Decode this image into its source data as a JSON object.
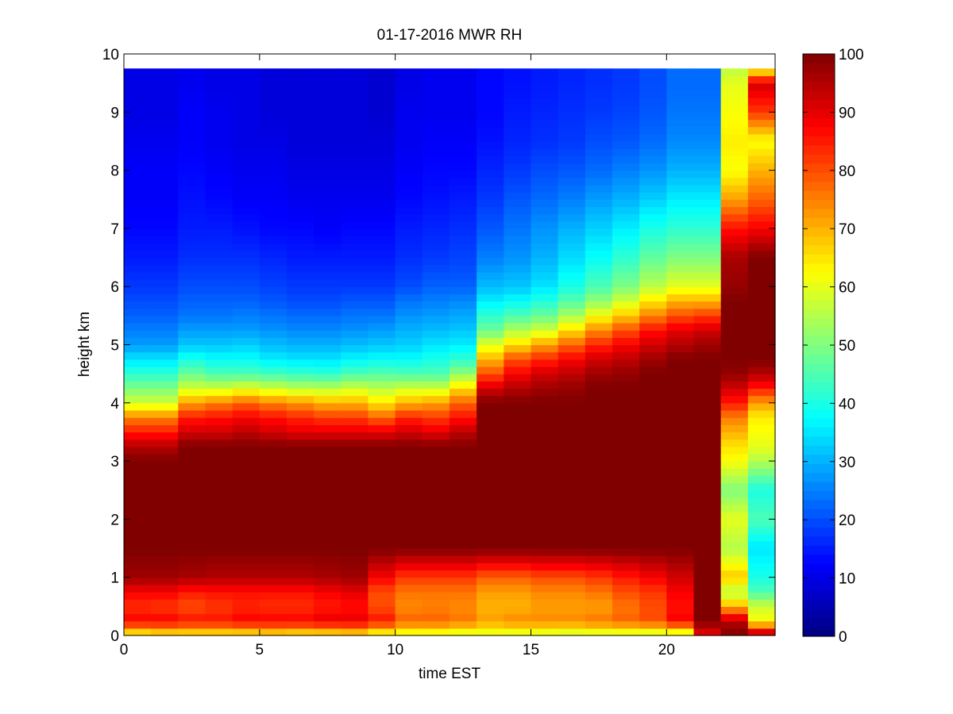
{
  "chart_data": {
    "type": "heatmap",
    "title": "01-17-2016 MWR RH",
    "xlabel": "time EST",
    "ylabel": "height km",
    "xlim": [
      0,
      24
    ],
    "ylim": [
      0,
      10
    ],
    "xticks": [
      0,
      5,
      10,
      15,
      20
    ],
    "yticks": [
      0,
      1,
      2,
      3,
      4,
      5,
      6,
      7,
      8,
      9,
      10
    ],
    "colorbar": {
      "range": [
        0,
        100
      ],
      "ticks": [
        0,
        10,
        20,
        30,
        40,
        50,
        60,
        70,
        80,
        90,
        100
      ],
      "colormap": "jet"
    },
    "grid": false,
    "time_bins": [
      0,
      1,
      2,
      3,
      4,
      5,
      6,
      7,
      8,
      9,
      10,
      11,
      12,
      13,
      14,
      15,
      16,
      17,
      18,
      19,
      20,
      21,
      22,
      23
    ],
    "height_levels_km": [
      0,
      0.25,
      0.5,
      0.75,
      1,
      1.5,
      2,
      2.5,
      3,
      3.25,
      3.5,
      3.75,
      4,
      4.25,
      4.5,
      4.75,
      5,
      5.25,
      5.5,
      5.75,
      6,
      6.5,
      7,
      7.5,
      8,
      8.5,
      9,
      9.5,
      9.75
    ],
    "max_height_km": 9.75,
    "rh_profiles": [
      [
        60,
        88,
        83,
        88,
        97,
        100,
        100,
        100,
        100,
        95,
        85,
        75,
        58,
        50,
        42,
        35,
        28,
        25,
        22,
        20,
        18,
        15,
        13,
        12,
        12,
        11,
        10,
        10,
        10
      ],
      [
        62,
        88,
        82,
        88,
        97,
        100,
        100,
        100,
        100,
        95,
        85,
        75,
        58,
        50,
        42,
        35,
        28,
        25,
        22,
        20,
        18,
        15,
        13,
        12,
        12,
        11,
        10,
        10,
        10
      ],
      [
        62,
        86,
        80,
        85,
        96,
        100,
        100,
        100,
        100,
        100,
        92,
        85,
        72,
        58,
        48,
        40,
        32,
        28,
        24,
        22,
        20,
        17,
        15,
        14,
        13,
        12,
        12,
        11,
        11
      ],
      [
        62,
        86,
        82,
        86,
        95,
        100,
        100,
        100,
        100,
        100,
        92,
        86,
        75,
        58,
        45,
        38,
        32,
        28,
        24,
        22,
        20,
        17,
        15,
        13,
        12,
        11,
        11,
        10,
        10
      ],
      [
        62,
        88,
        84,
        86,
        95,
        100,
        100,
        100,
        100,
        100,
        94,
        88,
        78,
        60,
        45,
        38,
        33,
        28,
        25,
        22,
        20,
        17,
        14,
        12,
        11,
        10,
        10,
        10,
        10
      ],
      [
        63,
        88,
        83,
        86,
        95,
        100,
        100,
        100,
        100,
        100,
        92,
        86,
        75,
        58,
        44,
        36,
        31,
        27,
        24,
        21,
        19,
        16,
        13,
        12,
        11,
        10,
        9,
        9,
        9
      ],
      [
        62,
        88,
        83,
        86,
        95,
        100,
        100,
        100,
        100,
        100,
        90,
        84,
        73,
        56,
        43,
        35,
        30,
        26,
        23,
        20,
        18,
        15,
        13,
        11,
        10,
        9,
        9,
        9,
        9
      ],
      [
        62,
        90,
        85,
        88,
        96,
        100,
        100,
        100,
        100,
        100,
        90,
        82,
        70,
        56,
        42,
        35,
        30,
        26,
        23,
        20,
        18,
        15,
        12,
        11,
        10,
        9,
        9,
        9,
        9
      ],
      [
        63,
        90,
        86,
        90,
        97,
        100,
        100,
        100,
        100,
        100,
        90,
        82,
        70,
        58,
        45,
        37,
        31,
        27,
        24,
        21,
        18,
        15,
        13,
        11,
        10,
        9,
        9,
        9,
        9
      ],
      [
        58,
        86,
        80,
        80,
        88,
        100,
        100,
        100,
        100,
        100,
        90,
        78,
        65,
        56,
        46,
        38,
        32,
        28,
        24,
        21,
        18,
        15,
        13,
        11,
        10,
        9,
        8,
        8,
        8
      ],
      [
        58,
        78,
        74,
        76,
        82,
        100,
        100,
        100,
        100,
        100,
        92,
        84,
        70,
        58,
        45,
        38,
        33,
        30,
        27,
        24,
        20,
        17,
        15,
        13,
        12,
        11,
        11,
        10,
        10
      ],
      [
        58,
        78,
        75,
        76,
        82,
        100,
        100,
        100,
        100,
        100,
        90,
        82,
        72,
        58,
        45,
        40,
        35,
        31,
        28,
        25,
        22,
        18,
        16,
        14,
        13,
        12,
        11,
        11,
        11
      ],
      [
        57,
        76,
        74,
        76,
        82,
        100,
        100,
        100,
        100,
        100,
        94,
        86,
        78,
        66,
        52,
        42,
        36,
        32,
        29,
        26,
        22,
        19,
        17,
        15,
        13,
        12,
        11,
        11,
        11
      ],
      [
        58,
        72,
        70,
        72,
        78,
        100,
        100,
        100,
        100,
        100,
        100,
        100,
        100,
        92,
        80,
        70,
        60,
        48,
        42,
        36,
        31,
        25,
        21,
        18,
        16,
        14,
        13,
        13,
        13
      ],
      [
        57,
        74,
        70,
        72,
        78,
        100,
        100,
        100,
        100,
        100,
        100,
        100,
        100,
        95,
        88,
        80,
        66,
        55,
        45,
        38,
        32,
        27,
        24,
        21,
        18,
        16,
        15,
        14,
        14
      ],
      [
        57,
        74,
        72,
        74,
        80,
        100,
        100,
        100,
        100,
        100,
        100,
        100,
        100,
        97,
        92,
        84,
        72,
        58,
        48,
        41,
        35,
        30,
        27,
        23,
        20,
        17,
        16,
        15,
        15
      ],
      [
        56,
        74,
        72,
        74,
        80,
        100,
        100,
        100,
        100,
        100,
        100,
        100,
        100,
        98,
        94,
        88,
        78,
        66,
        54,
        46,
        40,
        34,
        30,
        25,
        21,
        18,
        17,
        16,
        16
      ],
      [
        56,
        76,
        72,
        76,
        82,
        100,
        100,
        100,
        100,
        100,
        100,
        100,
        100,
        100,
        97,
        92,
        84,
        74,
        62,
        52,
        45,
        38,
        33,
        28,
        23,
        20,
        18,
        17,
        17
      ],
      [
        56,
        78,
        76,
        80,
        85,
        100,
        100,
        100,
        100,
        100,
        100,
        100,
        100,
        100,
        98,
        94,
        88,
        80,
        68,
        58,
        50,
        42,
        36,
        30,
        25,
        21,
        19,
        18,
        18
      ],
      [
        55,
        80,
        80,
        82,
        88,
        100,
        100,
        100,
        100,
        100,
        100,
        100,
        100,
        100,
        100,
        97,
        92,
        86,
        75,
        65,
        56,
        47,
        40,
        33,
        27,
        23,
        21,
        20,
        20
      ],
      [
        54,
        88,
        86,
        88,
        92,
        100,
        100,
        100,
        100,
        100,
        100,
        100,
        100,
        100,
        100,
        100,
        95,
        90,
        80,
        70,
        60,
        50,
        42,
        36,
        30,
        26,
        24,
        23,
        23
      ],
      [
        88,
        100,
        100,
        100,
        100,
        100,
        100,
        100,
        100,
        100,
        100,
        100,
        100,
        100,
        100,
        100,
        97,
        92,
        82,
        70,
        60,
        50,
        42,
        36,
        30,
        26,
        24,
        23,
        23
      ],
      [
        100,
        95,
        70,
        55,
        68,
        55,
        60,
        50,
        62,
        65,
        70,
        75,
        85,
        92,
        98,
        100,
        100,
        100,
        100,
        100,
        98,
        96,
        86,
        72,
        62,
        64,
        62,
        60,
        56
      ],
      [
        100,
        62,
        58,
        45,
        40,
        35,
        45,
        40,
        55,
        60,
        62,
        64,
        72,
        85,
        95,
        100,
        100,
        100,
        100,
        100,
        100,
        100,
        88,
        78,
        70,
        62,
        82,
        92,
        60
      ]
    ]
  }
}
